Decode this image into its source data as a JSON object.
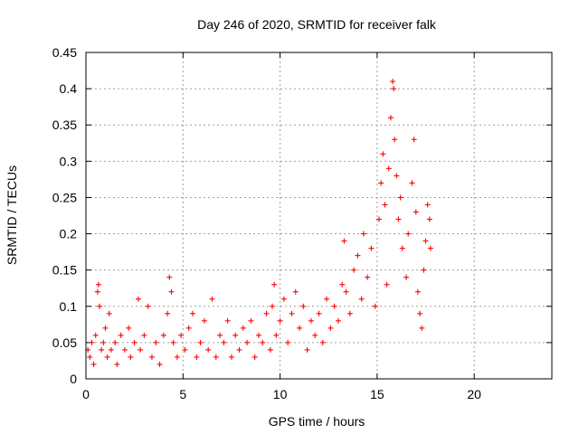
{
  "chart_data": {
    "type": "scatter",
    "title": "Day 246 of 2020, SRMTID for receiver falk",
    "xlabel": "GPS time / hours",
    "ylabel": "SRMTID / TECUs",
    "xlim": [
      0,
      24
    ],
    "ylim": [
      0,
      0.45
    ],
    "xticks": [
      0,
      5,
      10,
      15,
      20
    ],
    "yticks": [
      0,
      0.05,
      0.1,
      0.15,
      0.2,
      0.25,
      0.3,
      0.35,
      0.4,
      0.45
    ],
    "xtick_labels": [
      "0",
      "5",
      "10",
      "15",
      "20"
    ],
    "ytick_labels": [
      "0",
      "0.05",
      "0.1",
      "0.15",
      "0.2",
      "0.25",
      "0.3",
      "0.35",
      "0.4",
      "0.45"
    ],
    "grid": true,
    "marker": "+",
    "color": "#ff0000",
    "series": [
      {
        "name": "SRMTID",
        "points": [
          [
            0.1,
            0.04
          ],
          [
            0.2,
            0.03
          ],
          [
            0.3,
            0.05
          ],
          [
            0.4,
            0.02
          ],
          [
            0.5,
            0.06
          ],
          [
            0.6,
            0.12
          ],
          [
            0.65,
            0.13
          ],
          [
            0.7,
            0.1
          ],
          [
            0.8,
            0.04
          ],
          [
            0.9,
            0.05
          ],
          [
            1.0,
            0.07
          ],
          [
            1.1,
            0.03
          ],
          [
            1.2,
            0.09
          ],
          [
            1.3,
            0.04
          ],
          [
            1.5,
            0.05
          ],
          [
            1.6,
            0.02
          ],
          [
            1.8,
            0.06
          ],
          [
            2.0,
            0.04
          ],
          [
            2.2,
            0.07
          ],
          [
            2.3,
            0.03
          ],
          [
            2.5,
            0.05
          ],
          [
            2.7,
            0.11
          ],
          [
            2.8,
            0.04
          ],
          [
            3.0,
            0.06
          ],
          [
            3.2,
            0.1
          ],
          [
            3.4,
            0.03
          ],
          [
            3.6,
            0.05
          ],
          [
            3.8,
            0.02
          ],
          [
            4.0,
            0.06
          ],
          [
            4.2,
            0.09
          ],
          [
            4.3,
            0.14
          ],
          [
            4.4,
            0.12
          ],
          [
            4.5,
            0.05
          ],
          [
            4.7,
            0.03
          ],
          [
            4.9,
            0.06
          ],
          [
            5.1,
            0.04
          ],
          [
            5.3,
            0.07
          ],
          [
            5.5,
            0.09
          ],
          [
            5.7,
            0.03
          ],
          [
            5.9,
            0.05
          ],
          [
            6.1,
            0.08
          ],
          [
            6.3,
            0.04
          ],
          [
            6.5,
            0.11
          ],
          [
            6.7,
            0.03
          ],
          [
            6.9,
            0.06
          ],
          [
            7.1,
            0.05
          ],
          [
            7.3,
            0.08
          ],
          [
            7.5,
            0.03
          ],
          [
            7.7,
            0.06
          ],
          [
            7.9,
            0.04
          ],
          [
            8.1,
            0.07
          ],
          [
            8.3,
            0.05
          ],
          [
            8.5,
            0.08
          ],
          [
            8.7,
            0.03
          ],
          [
            8.9,
            0.06
          ],
          [
            9.1,
            0.05
          ],
          [
            9.3,
            0.09
          ],
          [
            9.5,
            0.04
          ],
          [
            9.6,
            0.1
          ],
          [
            9.7,
            0.13
          ],
          [
            9.8,
            0.06
          ],
          [
            10.0,
            0.08
          ],
          [
            10.2,
            0.11
          ],
          [
            10.4,
            0.05
          ],
          [
            10.6,
            0.09
          ],
          [
            10.8,
            0.12
          ],
          [
            11.0,
            0.07
          ],
          [
            11.2,
            0.1
          ],
          [
            11.4,
            0.04
          ],
          [
            11.6,
            0.08
          ],
          [
            11.8,
            0.06
          ],
          [
            12.0,
            0.09
          ],
          [
            12.2,
            0.05
          ],
          [
            12.4,
            0.11
          ],
          [
            12.6,
            0.07
          ],
          [
            12.8,
            0.1
          ],
          [
            13.0,
            0.08
          ],
          [
            13.2,
            0.13
          ],
          [
            13.3,
            0.19
          ],
          [
            13.4,
            0.12
          ],
          [
            13.6,
            0.09
          ],
          [
            13.8,
            0.15
          ],
          [
            14.0,
            0.17
          ],
          [
            14.2,
            0.11
          ],
          [
            14.3,
            0.2
          ],
          [
            14.5,
            0.14
          ],
          [
            14.7,
            0.18
          ],
          [
            14.9,
            0.1
          ],
          [
            15.1,
            0.22
          ],
          [
            15.2,
            0.27
          ],
          [
            15.3,
            0.31
          ],
          [
            15.4,
            0.24
          ],
          [
            15.5,
            0.13
          ],
          [
            15.6,
            0.29
          ],
          [
            15.7,
            0.36
          ],
          [
            15.8,
            0.41
          ],
          [
            15.85,
            0.4
          ],
          [
            15.9,
            0.33
          ],
          [
            16.0,
            0.28
          ],
          [
            16.1,
            0.22
          ],
          [
            16.2,
            0.25
          ],
          [
            16.3,
            0.18
          ],
          [
            16.5,
            0.14
          ],
          [
            16.6,
            0.2
          ],
          [
            16.8,
            0.27
          ],
          [
            16.9,
            0.33
          ],
          [
            17.0,
            0.23
          ],
          [
            17.1,
            0.12
          ],
          [
            17.2,
            0.09
          ],
          [
            17.3,
            0.07
          ],
          [
            17.4,
            0.15
          ],
          [
            17.5,
            0.19
          ],
          [
            17.6,
            0.24
          ],
          [
            17.7,
            0.22
          ],
          [
            17.75,
            0.18
          ]
        ]
      }
    ]
  }
}
